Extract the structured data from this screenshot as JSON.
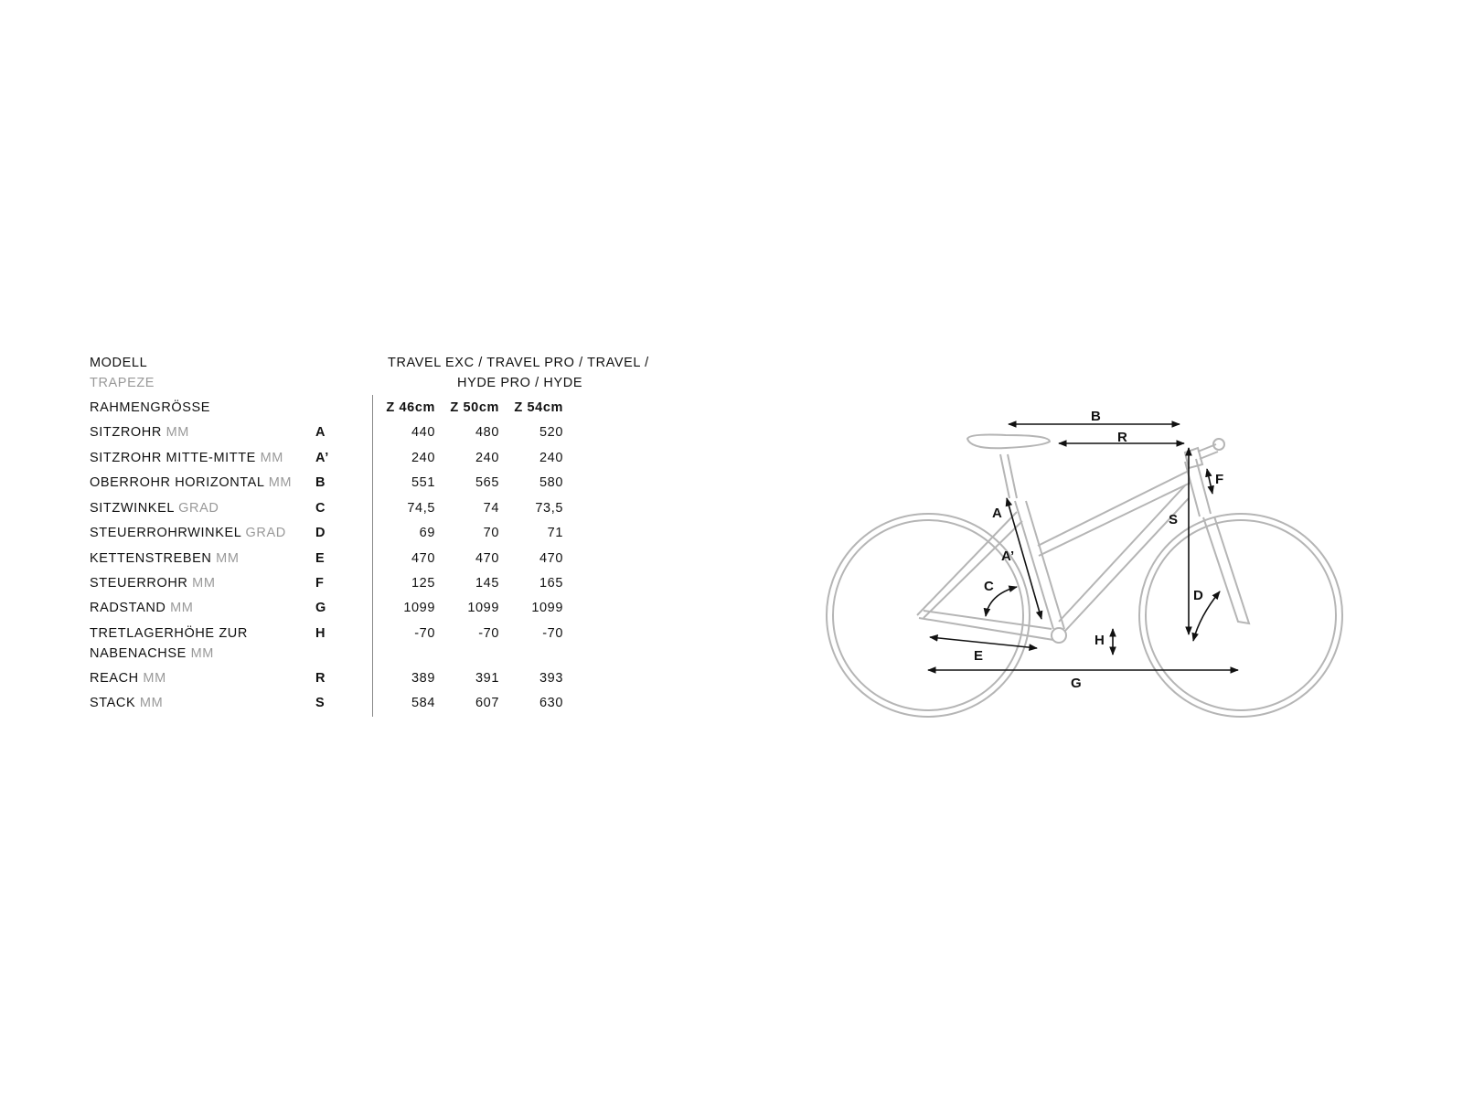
{
  "table": {
    "model_label": "MODELL",
    "model_sub": "TRAPEZE",
    "model_names_line1": "TRAVEL EXC / TRAVEL PRO / TRAVEL /",
    "model_names_line2": "HYDE PRO / HYDE",
    "size_label": "RAHMENGRÖSSE",
    "sizes": [
      "Z 46cm",
      "Z 50cm",
      "Z 54cm"
    ],
    "rows": [
      {
        "name": "SITZROHR",
        "unit": "MM",
        "code": "A",
        "values": [
          "440",
          "480",
          "520"
        ]
      },
      {
        "name": "SITZROHR MITTE-MITTE",
        "unit": "MM",
        "code": "A’",
        "values": [
          "240",
          "240",
          "240"
        ]
      },
      {
        "name": "OBERROHR HORIZONTAL",
        "unit": "MM",
        "code": "B",
        "values": [
          "551",
          "565",
          "580"
        ]
      },
      {
        "name": "SITZWINKEL",
        "unit": "GRAD",
        "code": "C",
        "values": [
          "74,5",
          "74",
          "73,5"
        ]
      },
      {
        "name": "STEUERROHRWINKEL",
        "unit": "GRAD",
        "code": "D",
        "values": [
          "69",
          "70",
          "71"
        ]
      },
      {
        "name": "KETTENSTREBEN",
        "unit": "MM",
        "code": "E",
        "values": [
          "470",
          "470",
          "470"
        ]
      },
      {
        "name": "STEUERROHR",
        "unit": "MM",
        "code": "F",
        "values": [
          "125",
          "145",
          "165"
        ]
      },
      {
        "name": "RADSTAND",
        "unit": "MM",
        "code": "G",
        "values": [
          "1099",
          "1099",
          "1099"
        ]
      },
      {
        "name": "TRETLAGERHÖHE ZUR",
        "name2": "NABENACHSE",
        "unit": "MM",
        "code": "H",
        "values": [
          "-70",
          "-70",
          "-70"
        ]
      },
      {
        "name": "REACH",
        "unit": "MM",
        "code": "R",
        "values": [
          "389",
          "391",
          "393"
        ]
      },
      {
        "name": "STACK",
        "unit": "MM",
        "code": "S",
        "values": [
          "584",
          "607",
          "630"
        ]
      }
    ]
  },
  "diagram": {
    "labels": {
      "A": "A",
      "A2": "A’",
      "B": "B",
      "C": "C",
      "D": "D",
      "E": "E",
      "F": "F",
      "G": "G",
      "H": "H",
      "R": "R",
      "S": "S"
    },
    "frame_color": "#b5b5b5",
    "arrow_color": "#111111"
  }
}
